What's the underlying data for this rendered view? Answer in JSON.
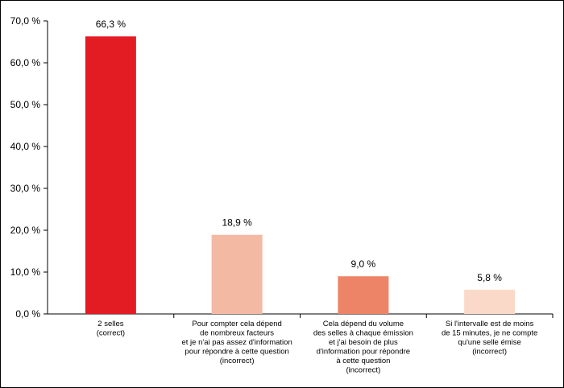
{
  "chart_data": {
    "type": "bar",
    "title": "",
    "xlabel": "",
    "ylabel": "",
    "ylim": [
      0,
      70
    ],
    "yticks": [
      "0,0 %",
      "10,0 %",
      "20,0 %",
      "30,0 %",
      "40,0 %",
      "50,0 %",
      "60,0 %",
      "70,0 %"
    ],
    "ytick_values": [
      0,
      10,
      20,
      30,
      40,
      50,
      60,
      70
    ],
    "grid": false,
    "legend": "none",
    "categories": [
      [
        "2 selles",
        "(correct)"
      ],
      [
        "Pour compter cela dépend",
        "de nombreux facteurs",
        "et je n'ai pas assez d'information",
        "pour répondre à cette question",
        "(incorrect)"
      ],
      [
        "Cela dépend du volume",
        "des selles à chaque émission",
        "et j'ai besoin de plus",
        "d'information pour répondre",
        "à cette question",
        "(incorrect)"
      ],
      [
        "Si l'intervalle est de moins",
        "de 15 minutes, je ne compte",
        "qu'une selle émise",
        "(incorrect)"
      ]
    ],
    "values": [
      66.3,
      18.9,
      9.0,
      5.8
    ],
    "data_labels": [
      "66,3 %",
      "18,9 %",
      "9,0 %",
      "5,8 %"
    ],
    "colors": [
      "#e31b23",
      "#f4b9a3",
      "#ee8467",
      "#fad9c9"
    ],
    "axis_color": "#000000"
  }
}
